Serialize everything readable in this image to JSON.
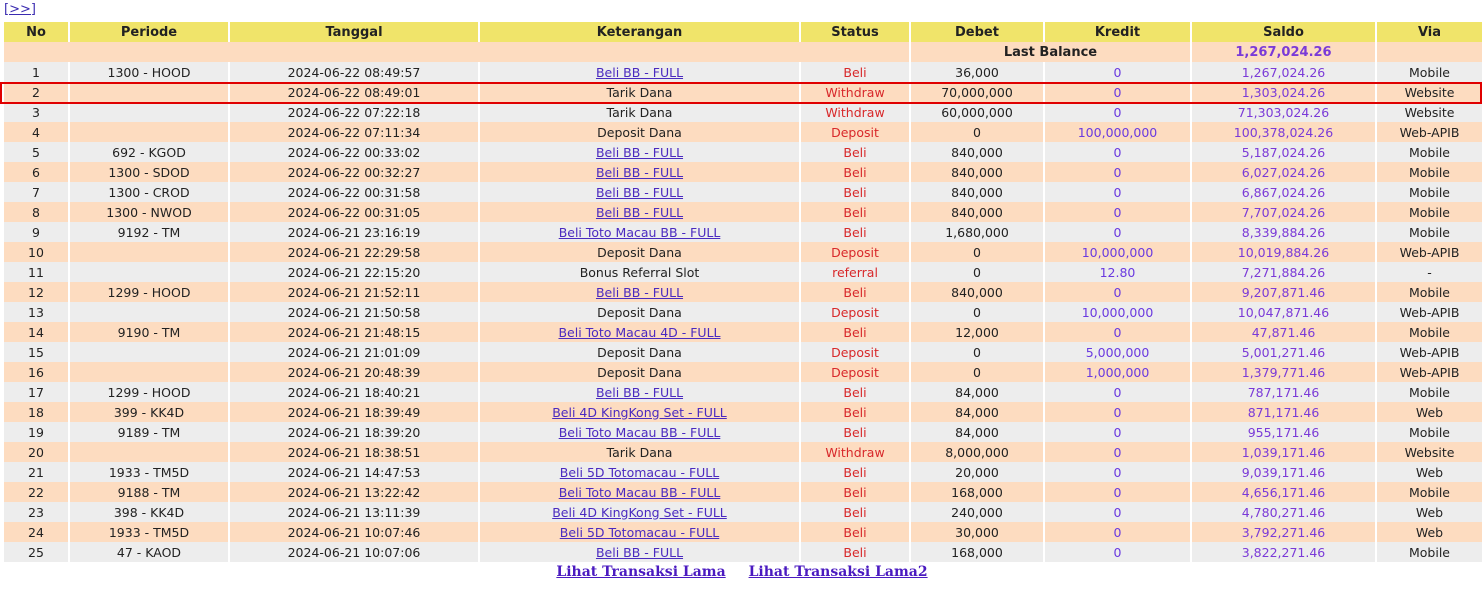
{
  "nav_label": "[>>]",
  "headers": [
    "No",
    "Periode",
    "Tanggal",
    "Keterangan",
    "Status",
    "Debet",
    "Kredit",
    "Saldo",
    "Via"
  ],
  "last_balance": {
    "label": "Last Balance",
    "value": "1,267,024.26"
  },
  "highlighted_row": 2,
  "colors": {
    "header": "#f0e46a",
    "row_odd": "#ededed",
    "row_even": "#fddcc0",
    "status": "#d8282a",
    "saldo": "#7a3ad8",
    "highlight": "#e00000"
  },
  "rows": [
    {
      "no": "1",
      "periode": "1300 - HOOD",
      "tanggal": "2024-06-22 08:49:57",
      "ket": "Beli BB - FULL",
      "link": true,
      "status": "Beli",
      "debet": "36,000",
      "kredit": "0",
      "saldo": "1,267,024.26",
      "via": "Mobile"
    },
    {
      "no": "2",
      "periode": "",
      "tanggal": "2024-06-22 08:49:01",
      "ket": "Tarik Dana",
      "link": false,
      "status": "Withdraw",
      "debet": "70,000,000",
      "kredit": "0",
      "saldo": "1,303,024.26",
      "via": "Website"
    },
    {
      "no": "3",
      "periode": "",
      "tanggal": "2024-06-22 07:22:18",
      "ket": "Tarik Dana",
      "link": false,
      "status": "Withdraw",
      "debet": "60,000,000",
      "kredit": "0",
      "saldo": "71,303,024.26",
      "via": "Website"
    },
    {
      "no": "4",
      "periode": "",
      "tanggal": "2024-06-22 07:11:34",
      "ket": "Deposit Dana",
      "link": false,
      "status": "Deposit",
      "debet": "0",
      "kredit": "100,000,000",
      "saldo": "100,378,024.26",
      "via": "Web-APIB"
    },
    {
      "no": "5",
      "periode": "692 - KGOD",
      "tanggal": "2024-06-22 00:33:02",
      "ket": "Beli BB - FULL",
      "link": true,
      "status": "Beli",
      "debet": "840,000",
      "kredit": "0",
      "saldo": "5,187,024.26",
      "via": "Mobile"
    },
    {
      "no": "6",
      "periode": "1300 - SDOD",
      "tanggal": "2024-06-22 00:32:27",
      "ket": "Beli BB - FULL",
      "link": true,
      "status": "Beli",
      "debet": "840,000",
      "kredit": "0",
      "saldo": "6,027,024.26",
      "via": "Mobile"
    },
    {
      "no": "7",
      "periode": "1300 - CROD",
      "tanggal": "2024-06-22 00:31:58",
      "ket": "Beli BB - FULL",
      "link": true,
      "status": "Beli",
      "debet": "840,000",
      "kredit": "0",
      "saldo": "6,867,024.26",
      "via": "Mobile"
    },
    {
      "no": "8",
      "periode": "1300 - NWOD",
      "tanggal": "2024-06-22 00:31:05",
      "ket": "Beli BB - FULL",
      "link": true,
      "status": "Beli",
      "debet": "840,000",
      "kredit": "0",
      "saldo": "7,707,024.26",
      "via": "Mobile"
    },
    {
      "no": "9",
      "periode": "9192 - TM",
      "tanggal": "2024-06-21 23:16:19",
      "ket": "Beli Toto Macau BB - FULL",
      "link": true,
      "status": "Beli",
      "debet": "1,680,000",
      "kredit": "0",
      "saldo": "8,339,884.26",
      "via": "Mobile"
    },
    {
      "no": "10",
      "periode": "",
      "tanggal": "2024-06-21 22:29:58",
      "ket": "Deposit Dana",
      "link": false,
      "status": "Deposit",
      "debet": "0",
      "kredit": "10,000,000",
      "saldo": "10,019,884.26",
      "via": "Web-APIB"
    },
    {
      "no": "11",
      "periode": "",
      "tanggal": "2024-06-21 22:15:20",
      "ket": "Bonus Referral Slot",
      "link": false,
      "status": "referral",
      "debet": "0",
      "kredit": "12.80",
      "saldo": "7,271,884.26",
      "via": "-"
    },
    {
      "no": "12",
      "periode": "1299 - HOOD",
      "tanggal": "2024-06-21 21:52:11",
      "ket": "Beli BB - FULL",
      "link": true,
      "status": "Beli",
      "debet": "840,000",
      "kredit": "0",
      "saldo": "9,207,871.46",
      "via": "Mobile"
    },
    {
      "no": "13",
      "periode": "",
      "tanggal": "2024-06-21 21:50:58",
      "ket": "Deposit Dana",
      "link": false,
      "status": "Deposit",
      "debet": "0",
      "kredit": "10,000,000",
      "saldo": "10,047,871.46",
      "via": "Web-APIB"
    },
    {
      "no": "14",
      "periode": "9190 - TM",
      "tanggal": "2024-06-21 21:48:15",
      "ket": "Beli Toto Macau 4D - FULL",
      "link": true,
      "status": "Beli",
      "debet": "12,000",
      "kredit": "0",
      "saldo": "47,871.46",
      "via": "Mobile"
    },
    {
      "no": "15",
      "periode": "",
      "tanggal": "2024-06-21 21:01:09",
      "ket": "Deposit Dana",
      "link": false,
      "status": "Deposit",
      "debet": "0",
      "kredit": "5,000,000",
      "saldo": "5,001,271.46",
      "via": "Web-APIB"
    },
    {
      "no": "16",
      "periode": "",
      "tanggal": "2024-06-21 20:48:39",
      "ket": "Deposit Dana",
      "link": false,
      "status": "Deposit",
      "debet": "0",
      "kredit": "1,000,000",
      "saldo": "1,379,771.46",
      "via": "Web-APIB"
    },
    {
      "no": "17",
      "periode": "1299 - HOOD",
      "tanggal": "2024-06-21 18:40:21",
      "ket": "Beli BB - FULL",
      "link": true,
      "status": "Beli",
      "debet": "84,000",
      "kredit": "0",
      "saldo": "787,171.46",
      "via": "Mobile"
    },
    {
      "no": "18",
      "periode": "399 - KK4D",
      "tanggal": "2024-06-21 18:39:49",
      "ket": "Beli 4D KingKong Set - FULL",
      "link": true,
      "status": "Beli",
      "debet": "84,000",
      "kredit": "0",
      "saldo": "871,171.46",
      "via": "Web"
    },
    {
      "no": "19",
      "periode": "9189 - TM",
      "tanggal": "2024-06-21 18:39:20",
      "ket": "Beli Toto Macau BB - FULL",
      "link": true,
      "status": "Beli",
      "debet": "84,000",
      "kredit": "0",
      "saldo": "955,171.46",
      "via": "Mobile"
    },
    {
      "no": "20",
      "periode": "",
      "tanggal": "2024-06-21 18:38:51",
      "ket": "Tarik Dana",
      "link": false,
      "status": "Withdraw",
      "debet": "8,000,000",
      "kredit": "0",
      "saldo": "1,039,171.46",
      "via": "Website"
    },
    {
      "no": "21",
      "periode": "1933 - TM5D",
      "tanggal": "2024-06-21 14:47:53",
      "ket": "Beli 5D Totomacau - FULL",
      "link": true,
      "status": "Beli",
      "debet": "20,000",
      "kredit": "0",
      "saldo": "9,039,171.46",
      "via": "Web"
    },
    {
      "no": "22",
      "periode": "9188 - TM",
      "tanggal": "2024-06-21 13:22:42",
      "ket": "Beli Toto Macau BB - FULL",
      "link": true,
      "status": "Beli",
      "debet": "168,000",
      "kredit": "0",
      "saldo": "4,656,171.46",
      "via": "Mobile"
    },
    {
      "no": "23",
      "periode": "398 - KK4D",
      "tanggal": "2024-06-21 13:11:39",
      "ket": "Beli 4D KingKong Set - FULL",
      "link": true,
      "status": "Beli",
      "debet": "240,000",
      "kredit": "0",
      "saldo": "4,780,271.46",
      "via": "Web"
    },
    {
      "no": "24",
      "periode": "1933 - TM5D",
      "tanggal": "2024-06-21 10:07:46",
      "ket": "Beli 5D Totomacau - FULL",
      "link": true,
      "status": "Beli",
      "debet": "30,000",
      "kredit": "0",
      "saldo": "3,792,271.46",
      "via": "Web"
    },
    {
      "no": "25",
      "periode": "47 - KAOD",
      "tanggal": "2024-06-21 10:07:06",
      "ket": "Beli BB - FULL",
      "link": true,
      "status": "Beli",
      "debet": "168,000",
      "kredit": "0",
      "saldo": "3,822,271.46",
      "via": "Mobile"
    }
  ],
  "footer_links": [
    "Lihat Transaksi Lama",
    "Lihat Transaksi Lama2"
  ]
}
